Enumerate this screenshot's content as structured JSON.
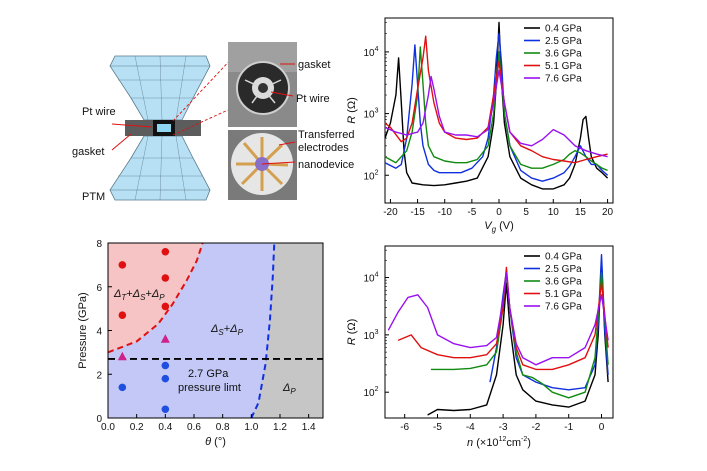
{
  "schematic": {
    "labels": {
      "pt_wire_left": "Pt wire",
      "gasket_left": "gasket",
      "ptm": "PTM",
      "gasket_photo": "gasket",
      "pt_wire_photo": "Pt wire",
      "transferred_l1": "Transferred",
      "transferred_l2": "electrodes",
      "nanodevice": "nanodevice"
    }
  },
  "chart_data": [
    {
      "id": "top-right",
      "type": "line",
      "title": "",
      "xlabel_main": "V",
      "xlabel_sub": "g",
      "xlabel_unit": " (V)",
      "ylabel_main": "R",
      "ylabel_unit": " (Ω)",
      "xlim": [
        -21,
        21
      ],
      "ylim_log10": [
        1.55,
        4.55
      ],
      "yscale": "log",
      "xticks": [
        -20,
        -15,
        -10,
        -5,
        0,
        5,
        10,
        15,
        20
      ],
      "yticks": [
        {
          "v": 2,
          "t": "10"
        },
        {
          "v": 3,
          "t": "10"
        },
        {
          "v": 4,
          "t": "10"
        }
      ],
      "ytick_exp": [
        "2",
        "3",
        "4"
      ],
      "legend": [
        "0.4 GPa",
        "2.5 GPa",
        "3.6 GPa",
        "5.1 GPa",
        "7.6 GPa"
      ],
      "series": [
        {
          "name": "0.4 GPa",
          "color": "#000000",
          "x": [
            -21,
            -20,
            -19,
            -18.5,
            -18,
            -17.5,
            -17,
            -16,
            -14,
            -12,
            -10,
            -8,
            -6,
            -4,
            -2,
            -1,
            -0.5,
            0,
            0.5,
            1,
            2,
            4,
            6,
            8,
            10,
            12,
            13,
            14,
            15,
            15.5,
            16,
            16.5,
            17,
            18,
            19,
            20
          ],
          "y": [
            400,
            700,
            2000,
            8000,
            1500,
            250,
            110,
            75,
            70,
            68,
            70,
            75,
            80,
            90,
            200,
            700,
            3000,
            30000,
            3000,
            700,
            200,
            90,
            70,
            60,
            60,
            70,
            90,
            150,
            400,
            800,
            900,
            400,
            200,
            130,
            110,
            90
          ]
        },
        {
          "name": "2.5 GPa",
          "color": "#1030e0",
          "x": [
            -21,
            -19,
            -18,
            -17,
            -16,
            -15.5,
            -15,
            -14.5,
            -14,
            -13,
            -12,
            -11,
            -9,
            -7,
            -5,
            -3,
            -2,
            -1,
            -0.5,
            0,
            0.5,
            1,
            2,
            4,
            6,
            8,
            10,
            12,
            13,
            14,
            15,
            16,
            17,
            18,
            19,
            20
          ],
          "y": [
            160,
            130,
            150,
            400,
            3000,
            13000,
            3000,
            700,
            300,
            150,
            120,
            110,
            110,
            110,
            130,
            200,
            400,
            2000,
            8000,
            20000,
            6000,
            1000,
            300,
            120,
            90,
            80,
            90,
            110,
            140,
            200,
            300,
            200,
            150,
            150,
            120,
            100
          ]
        },
        {
          "name": "3.6 GPa",
          "color": "#108a10",
          "x": [
            -21,
            -19,
            -17,
            -16,
            -15,
            -14.5,
            -14,
            -13.5,
            -13,
            -12,
            -10,
            -8,
            -6,
            -4,
            -2,
            -1,
            0,
            1,
            2,
            4,
            6,
            8,
            10,
            12,
            13,
            14,
            15,
            16,
            17,
            18,
            19,
            20
          ],
          "y": [
            200,
            160,
            250,
            500,
            2000,
            12000,
            3000,
            700,
            300,
            200,
            170,
            160,
            160,
            180,
            300,
            1000,
            10000,
            1000,
            300,
            150,
            130,
            130,
            150,
            180,
            220,
            250,
            230,
            200,
            170,
            150,
            130,
            120
          ]
        },
        {
          "name": "5.1 GPa",
          "color": "#e01010",
          "x": [
            -21,
            -20,
            -18,
            -17,
            -16,
            -15,
            -14,
            -13.5,
            -13,
            -12,
            -11,
            -10,
            -8,
            -6,
            -4,
            -2,
            -1,
            0,
            1,
            2,
            4,
            6,
            8,
            10,
            12,
            14,
            16,
            18,
            20
          ],
          "y": [
            700,
            600,
            350,
            400,
            700,
            2500,
            8000,
            18000,
            5000,
            1500,
            700,
            500,
            400,
            380,
            400,
            600,
            2000,
            7000,
            1500,
            500,
            300,
            250,
            200,
            180,
            170,
            160,
            180,
            200,
            220
          ]
        },
        {
          "name": "7.6 GPa",
          "color": "#9a10f0",
          "x": [
            -21,
            -19,
            -17,
            -15,
            -14,
            -13,
            -12.5,
            -12,
            -11,
            -10,
            -8,
            -6,
            -4,
            -2,
            -1,
            0,
            1,
            2,
            4,
            6,
            8,
            10,
            12,
            14,
            16,
            18,
            20
          ],
          "y": [
            600,
            500,
            450,
            500,
            700,
            2000,
            4000,
            2500,
            900,
            500,
            450,
            450,
            420,
            550,
            1500,
            5000,
            1500,
            500,
            330,
            300,
            380,
            550,
            450,
            300,
            250,
            220,
            200
          ]
        }
      ]
    },
    {
      "id": "bottom-left",
      "type": "scatter",
      "title": "",
      "xlabel_main": "θ",
      "xlabel_unit": " (°)",
      "ylabel": "Pressure (GPa)",
      "xlim": [
        0,
        1.5
      ],
      "ylim": [
        0,
        8
      ],
      "xticks": [
        0.0,
        0.2,
        0.4,
        0.6,
        0.8,
        1.0,
        1.2,
        1.4
      ],
      "xtick_labels": [
        "0.0",
        "0.2",
        "0.4",
        "0.6",
        "0.8",
        "1.0",
        "1.2",
        "1.4"
      ],
      "yticks": [
        0,
        2,
        4,
        6,
        8
      ],
      "red_points": [
        {
          "x": 0.1,
          "y": 7.0
        },
        {
          "x": 0.1,
          "y": 4.7
        },
        {
          "x": 0.4,
          "y": 7.6
        },
        {
          "x": 0.4,
          "y": 6.4
        },
        {
          "x": 0.4,
          "y": 5.1
        }
      ],
      "magenta_triangles": [
        {
          "x": 0.1,
          "y": 2.8
        },
        {
          "x": 0.4,
          "y": 3.6
        }
      ],
      "blue_points": [
        {
          "x": 0.1,
          "y": 1.4
        },
        {
          "x": 0.4,
          "y": 2.4
        },
        {
          "x": 0.4,
          "y": 1.8
        },
        {
          "x": 0.4,
          "y": 0.4
        }
      ],
      "pressure_limit": 2.7,
      "red_boundary": {
        "x": [
          0.0,
          0.2,
          0.35,
          0.45,
          0.55,
          0.62,
          0.66
        ],
        "y": [
          3.0,
          3.5,
          4.3,
          5.2,
          6.3,
          7.2,
          8.0
        ]
      },
      "blue_boundary": {
        "x": [
          1.0,
          1.05,
          1.1,
          1.13,
          1.15,
          1.16
        ],
        "y": [
          0.0,
          0.7,
          2.5,
          4.5,
          6.5,
          8.0
        ]
      },
      "region_colors": {
        "red": "#f6c4c4",
        "blue": "#c3c8f6",
        "gray": "#c6c6c6"
      },
      "annotations": {
        "region_triple": "Δ_T+Δ_S+Δ_P",
        "region_double": "Δ_S+Δ_P",
        "limit_line1": "2.7 GPa",
        "limit_line2": "pressure limt",
        "region_single": "Δ_P"
      }
    },
    {
      "id": "bottom-right",
      "type": "line",
      "title": "",
      "xlabel_main": "n",
      "xlabel_unit_pre": " (×10",
      "xlabel_exp": "12",
      "xlabel_unit_post": "cm",
      "xlabel_unit_exp": "-2",
      "xlabel_close": ")",
      "ylabel_main": "R",
      "ylabel_unit": " (Ω)",
      "xlim": [
        -6.6,
        0.35
      ],
      "ylim_log10": [
        1.55,
        4.55
      ],
      "yscale": "log",
      "xticks": [
        -6,
        -5,
        -4,
        -3,
        -2,
        -1,
        0
      ],
      "yticks": [
        {
          "v": 2,
          "t": "10"
        },
        {
          "v": 3,
          "t": "10"
        },
        {
          "v": 4,
          "t": "10"
        }
      ],
      "ytick_exp": [
        "2",
        "3",
        "4"
      ],
      "legend": [
        "0.4 GPa",
        "2.5 GPa",
        "3.6 GPa",
        "5.1 GPa",
        "7.6 GPa"
      ],
      "series": [
        {
          "name": "0.4 GPa",
          "color": "#000000",
          "x": [
            -5.3,
            -5,
            -4.5,
            -4,
            -3.5,
            -3.2,
            -3,
            -2.9,
            -2.8,
            -2.6,
            -2.4,
            -2,
            -1.5,
            -1,
            -0.5,
            -0.2,
            -0.1,
            0,
            0.1,
            0.2
          ],
          "y": [
            40,
            50,
            48,
            50,
            60,
            200,
            1500,
            8000,
            1500,
            200,
            110,
            70,
            60,
            55,
            70,
            200,
            1000,
            20000,
            1000,
            150
          ]
        },
        {
          "name": "2.5 GPa",
          "color": "#1030e0",
          "x": [
            -3.4,
            -3.2,
            -3,
            -2.9,
            -2.8,
            -2.6,
            -2.4,
            -2,
            -1.5,
            -1,
            -0.5,
            -0.2,
            -0.1,
            0,
            0.1,
            0.2
          ],
          "y": [
            150,
            600,
            5000,
            13000,
            3000,
            400,
            200,
            150,
            120,
            110,
            120,
            300,
            1500,
            25000,
            1200,
            200
          ]
        },
        {
          "name": "3.6 GPa",
          "color": "#108a10",
          "x": [
            -5.2,
            -4.5,
            -4,
            -3.5,
            -3.2,
            -3,
            -2.9,
            -2.8,
            -2.6,
            -2.4,
            -2.1,
            -1.8,
            -1.5,
            -1,
            -0.5,
            -0.2,
            0,
            0.2
          ],
          "y": [
            250,
            250,
            260,
            300,
            500,
            3000,
            12000,
            3000,
            500,
            200,
            180,
            140,
            100,
            80,
            100,
            400,
            12000,
            300
          ]
        },
        {
          "name": "5.1 GPa",
          "color": "#e01010",
          "x": [
            -6.2,
            -5.8,
            -5.5,
            -5,
            -4.5,
            -4,
            -3.5,
            -3.2,
            -3,
            -2.9,
            -2.8,
            -2.6,
            -2.4,
            -2,
            -1.5,
            -1,
            -0.5,
            -0.2,
            0,
            0.2
          ],
          "y": [
            800,
            1000,
            600,
            450,
            400,
            400,
            450,
            700,
            3000,
            15000,
            3000,
            600,
            300,
            250,
            250,
            300,
            400,
            1000,
            8000,
            600
          ]
        },
        {
          "name": "7.6 GPa",
          "color": "#9a10f0",
          "x": [
            -6.5,
            -6.2,
            -5.9,
            -5.6,
            -5.3,
            -5,
            -4.5,
            -4,
            -3.5,
            -3.2,
            -3,
            -2.9,
            -2.8,
            -2.6,
            -2.4,
            -2,
            -1.5,
            -1,
            -0.5,
            -0.2,
            0,
            0.2
          ],
          "y": [
            1200,
            2500,
            4500,
            5000,
            3000,
            1000,
            700,
            600,
            650,
            900,
            4000,
            12000,
            3000,
            700,
            400,
            300,
            400,
            400,
            600,
            1500,
            5000,
            800
          ]
        }
      ]
    }
  ]
}
